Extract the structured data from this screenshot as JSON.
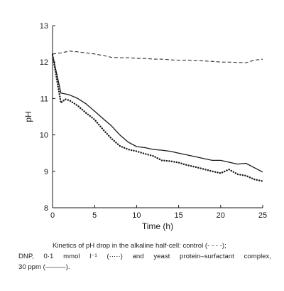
{
  "chart_data": {
    "type": "line",
    "xlabel": "Time (h)",
    "ylabel": "pH",
    "xlim": [
      0,
      25
    ],
    "ylim": [
      8,
      13
    ],
    "xticks": [
      "0",
      "5",
      "10",
      "15",
      "20",
      "25"
    ],
    "yticks": [
      "8",
      "9",
      "10",
      "11",
      "12",
      "13"
    ],
    "grid": false,
    "series": [
      {
        "style": "dashed",
        "x": [
          0,
          1,
          2,
          3,
          4,
          5,
          6,
          7,
          8,
          9,
          10,
          11,
          12,
          13,
          14,
          15,
          16,
          17,
          18,
          19,
          20,
          21,
          22,
          23,
          24,
          25
        ],
        "y": [
          12.22,
          12.25,
          12.3,
          12.28,
          12.25,
          12.22,
          12.18,
          12.13,
          12.12,
          12.12,
          12.1,
          12.1,
          12.08,
          12.08,
          12.06,
          12.05,
          12.05,
          12.04,
          12.03,
          12.02,
          12.0,
          12.0,
          11.99,
          11.98,
          12.05,
          12.08
        ]
      },
      {
        "style": "dotted",
        "x": [
          0,
          1,
          1.5,
          2,
          3,
          4,
          5,
          6,
          7,
          8,
          9,
          10,
          11,
          12,
          13,
          14,
          15,
          16,
          17,
          18,
          19,
          20,
          21,
          22,
          23,
          24,
          25
        ],
        "y": [
          12.2,
          10.88,
          10.98,
          10.95,
          10.8,
          10.6,
          10.42,
          10.15,
          9.9,
          9.7,
          9.6,
          9.55,
          9.48,
          9.42,
          9.3,
          9.28,
          9.24,
          9.17,
          9.12,
          9.06,
          9.0,
          8.95,
          9.05,
          8.92,
          8.88,
          8.78,
          8.73
        ]
      },
      {
        "style": "solid",
        "x": [
          0,
          1,
          2,
          3,
          4,
          5,
          6,
          7,
          8,
          9,
          10,
          11,
          12,
          13,
          14,
          15,
          16,
          17,
          18,
          19,
          20,
          21,
          22,
          23,
          24,
          25
        ],
        "y": [
          12.2,
          11.15,
          11.1,
          11.0,
          10.85,
          10.65,
          10.45,
          10.25,
          10.0,
          9.8,
          9.68,
          9.65,
          9.6,
          9.58,
          9.55,
          9.5,
          9.45,
          9.4,
          9.35,
          9.3,
          9.3,
          9.25,
          9.2,
          9.22,
          9.1,
          8.98
        ]
      }
    ]
  },
  "caption": {
    "line1": "Kinetics of pH drop in the alkaline half-cell: control (- - - -);",
    "line2": "DNP, 0·1 mmol l⁻¹ (·····) and yeast protein–surfactant complex,",
    "line3": "30 ppm (———)."
  }
}
